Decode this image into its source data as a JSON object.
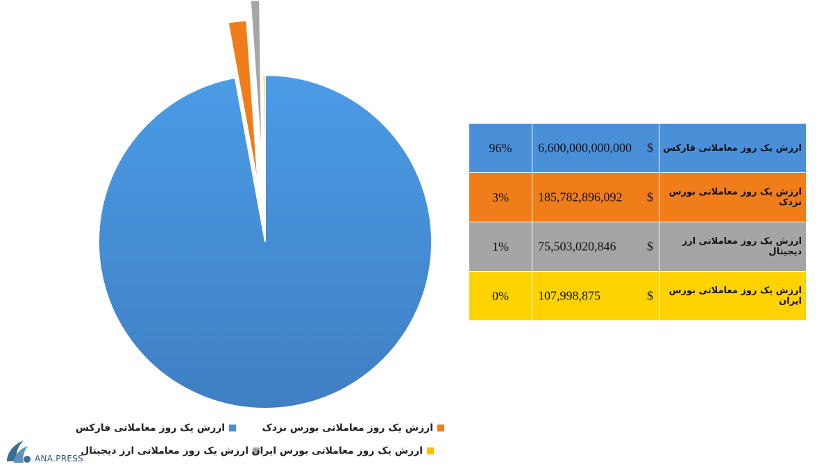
{
  "chart_data": {
    "type": "pie",
    "title": "",
    "slices": [
      {
        "label": "ارزش یک روز معاملاتی فارکس",
        "value": 6600000000000,
        "value_text": "6,600,000,000,000",
        "currency": "$",
        "percent_label": "96%",
        "color": "#4a90d9"
      },
      {
        "label": "ارزش یک روز معاملاتی بورس نزدک",
        "value": 185782896092,
        "value_text": "185,782,896,092",
        "currency": "$",
        "percent_label": "3%",
        "color": "#f07d1a"
      },
      {
        "label": "ارزش یک روز معاملاتی ارز دیجیتال",
        "value": 75503020846,
        "value_text": "75,503,020,846",
        "currency": "$",
        "percent_label": "1%",
        "color": "#a5a5a5"
      },
      {
        "label": "ارزش یک روز معاملاتی بورس ایران",
        "value": 107998875,
        "value_text": "107,998,875",
        "currency": "$",
        "percent_label": "0%",
        "color": "#ffc000"
      }
    ],
    "legend_position": "bottom"
  },
  "table_colors": [
    "#4a90d9",
    "#f07d1a",
    "#a5a5a5",
    "#ffd300"
  ],
  "watermark": {
    "text": "ANA.PRESS",
    "icon": "ana-logo-icon"
  }
}
